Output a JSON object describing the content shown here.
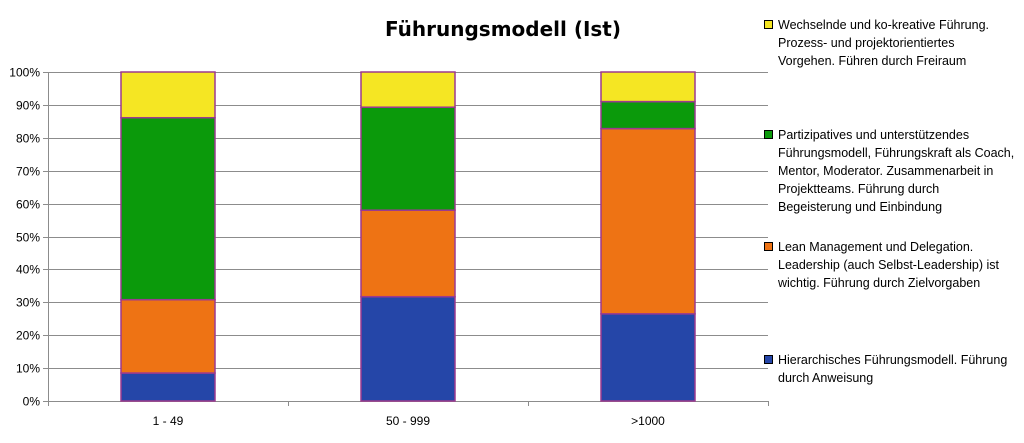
{
  "chart_data": {
    "type": "bar",
    "stacked": true,
    "title": "Führungsmodell (Ist)",
    "categories": [
      "1 - 49",
      "50 - 999",
      ">1000"
    ],
    "y_ticks": [
      "0%",
      "10%",
      "20%",
      "30%",
      "40%",
      "50%",
      "60%",
      "70%",
      "80%",
      "90%",
      "100%"
    ],
    "ylim": [
      0,
      100
    ],
    "grid": true,
    "legend_position": "right",
    "series": [
      {
        "name": "Hierarchisches Führungsmodell. Führung\ndurch Anweisung",
        "color": "#2546a8",
        "values": [
          8.5,
          31.7,
          26.5
        ]
      },
      {
        "name": "Lean Management und Delegation.\nLeadership (auch Selbst-Leadership) ist\nwichtig. Führung durch Zielvorgaben",
        "color": "#ee7314",
        "values": [
          22.3,
          26.3,
          56.3
        ]
      },
      {
        "name": "Partizipatives und unterstützendes\nFührungsmodell, Führungskraft als Coach,\nMentor, Moderator. Zusammenarbeit in\nProjektteams. Führung durch\nBegeisterung und Einbindung",
        "color": "#0b9a0b",
        "values": [
          55.3,
          31.3,
          8.2
        ]
      },
      {
        "name": "Wechselnde und ko-kreative Führung.\nProzess- und projektorientiertes\nVorgehen. Führen durch Freiraum",
        "color": "#f5e623",
        "values": [
          13.9,
          10.7,
          9.0
        ]
      }
    ]
  }
}
